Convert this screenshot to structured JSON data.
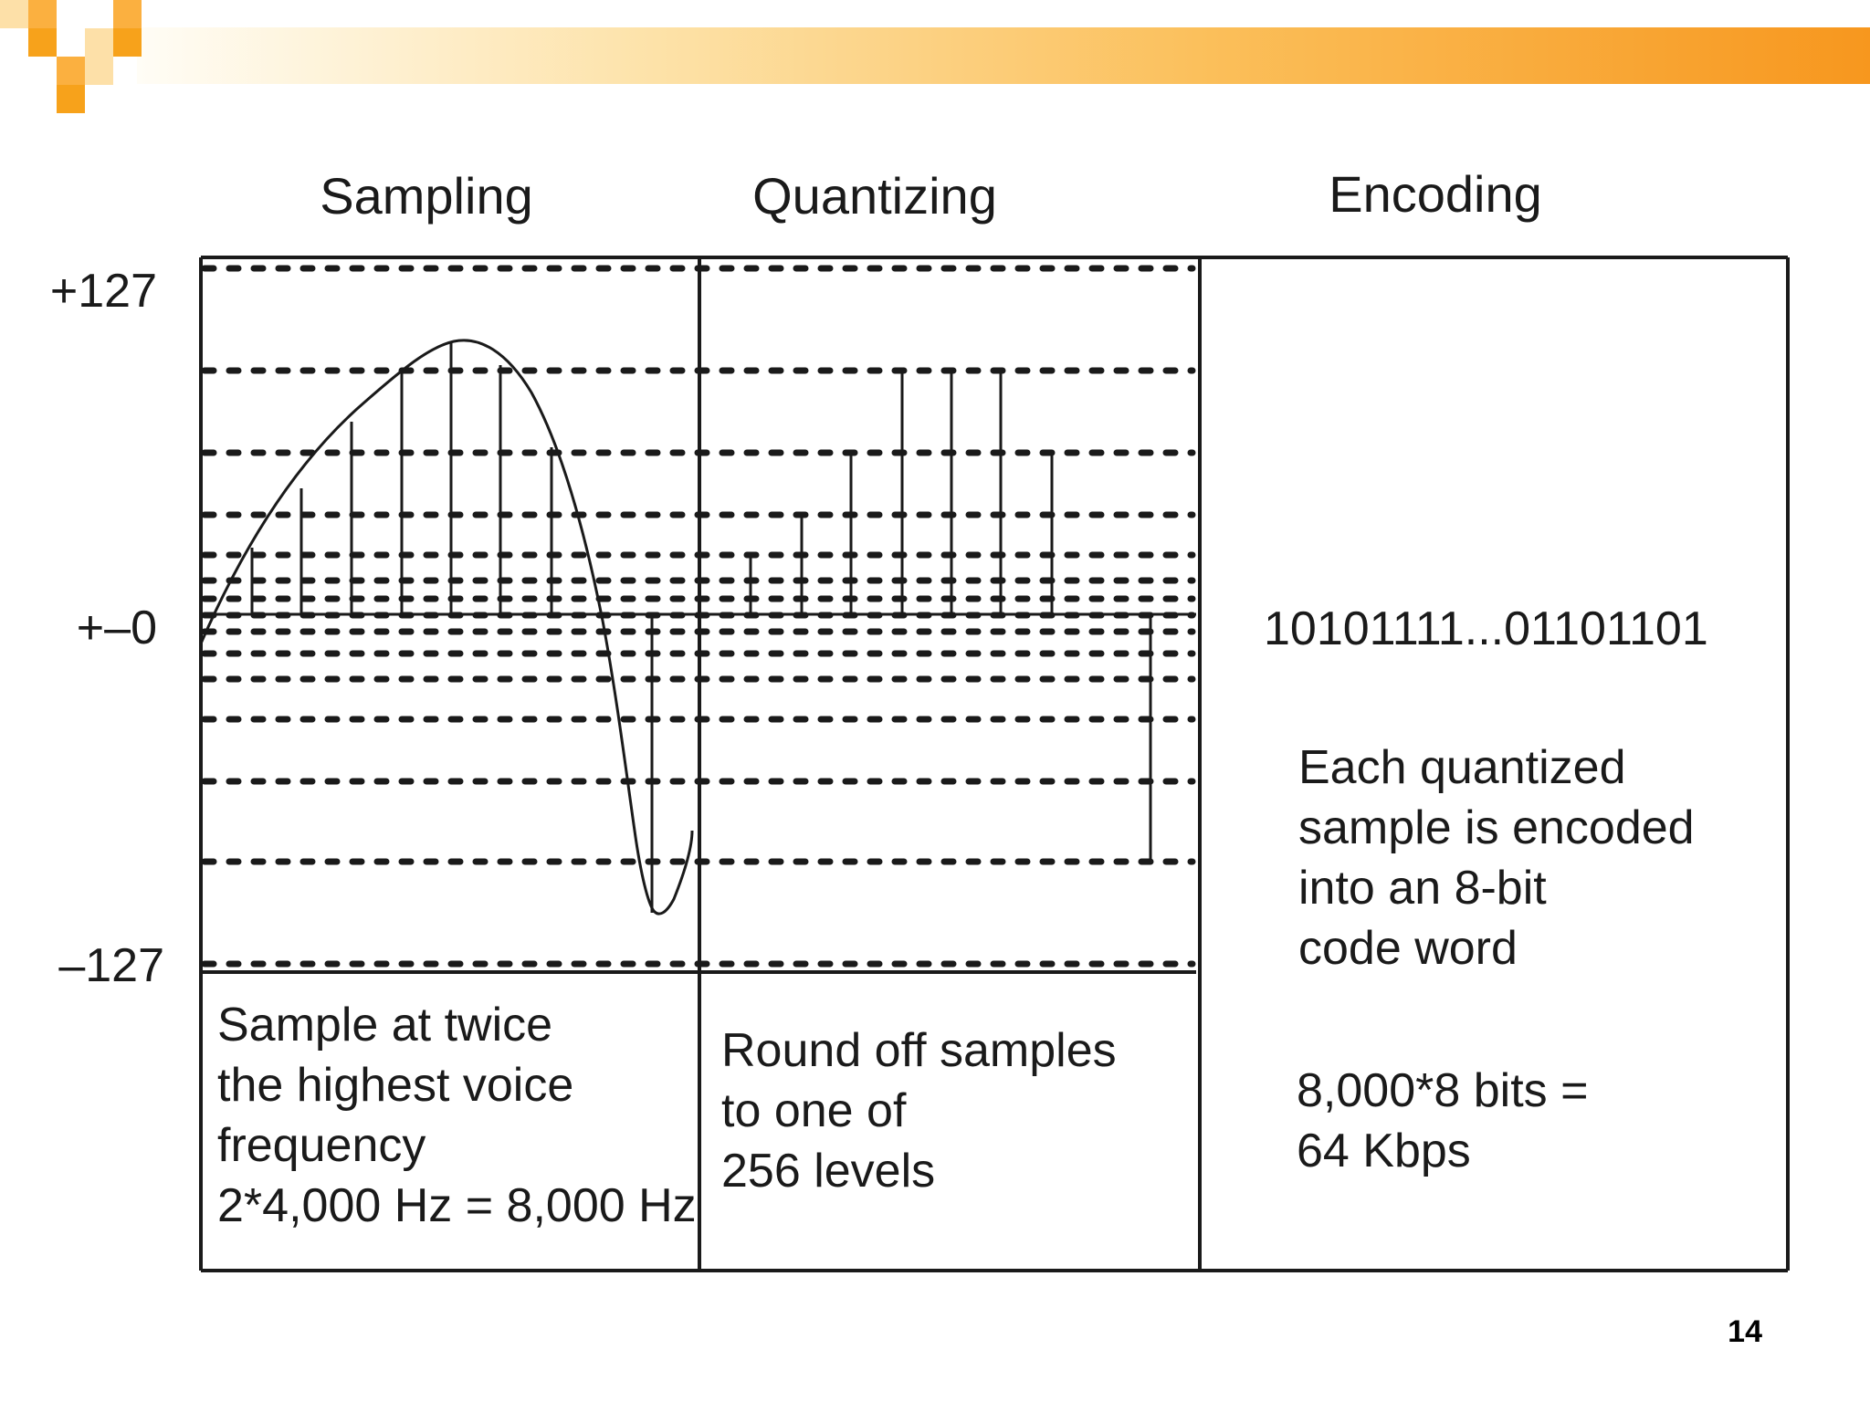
{
  "headings": {
    "sampling": "Sampling",
    "quantizing": "Quantizing",
    "encoding": "Encoding"
  },
  "axis": {
    "top": "+127",
    "middle": "+–0",
    "bottom": "–127"
  },
  "sampling_caption": [
    "Sample at twice",
    "the highest voice",
    "frequency",
    "2*4,000 Hz = 8,000 Hz"
  ],
  "quantizing_caption": [
    "Round off samples",
    "to one of",
    "256 levels"
  ],
  "encoding": {
    "code": "10101111...01101101",
    "description": [
      "Each quantized",
      "sample is encoded",
      "into an 8-bit",
      "code word"
    ],
    "rate": [
      "8,000*8 bits =",
      "64 Kbps"
    ]
  },
  "slide_number": "14",
  "colors": {
    "banner_orange": "#f7971e",
    "banner_square": "#f7a21b",
    "line": "#1a1a1a"
  }
}
